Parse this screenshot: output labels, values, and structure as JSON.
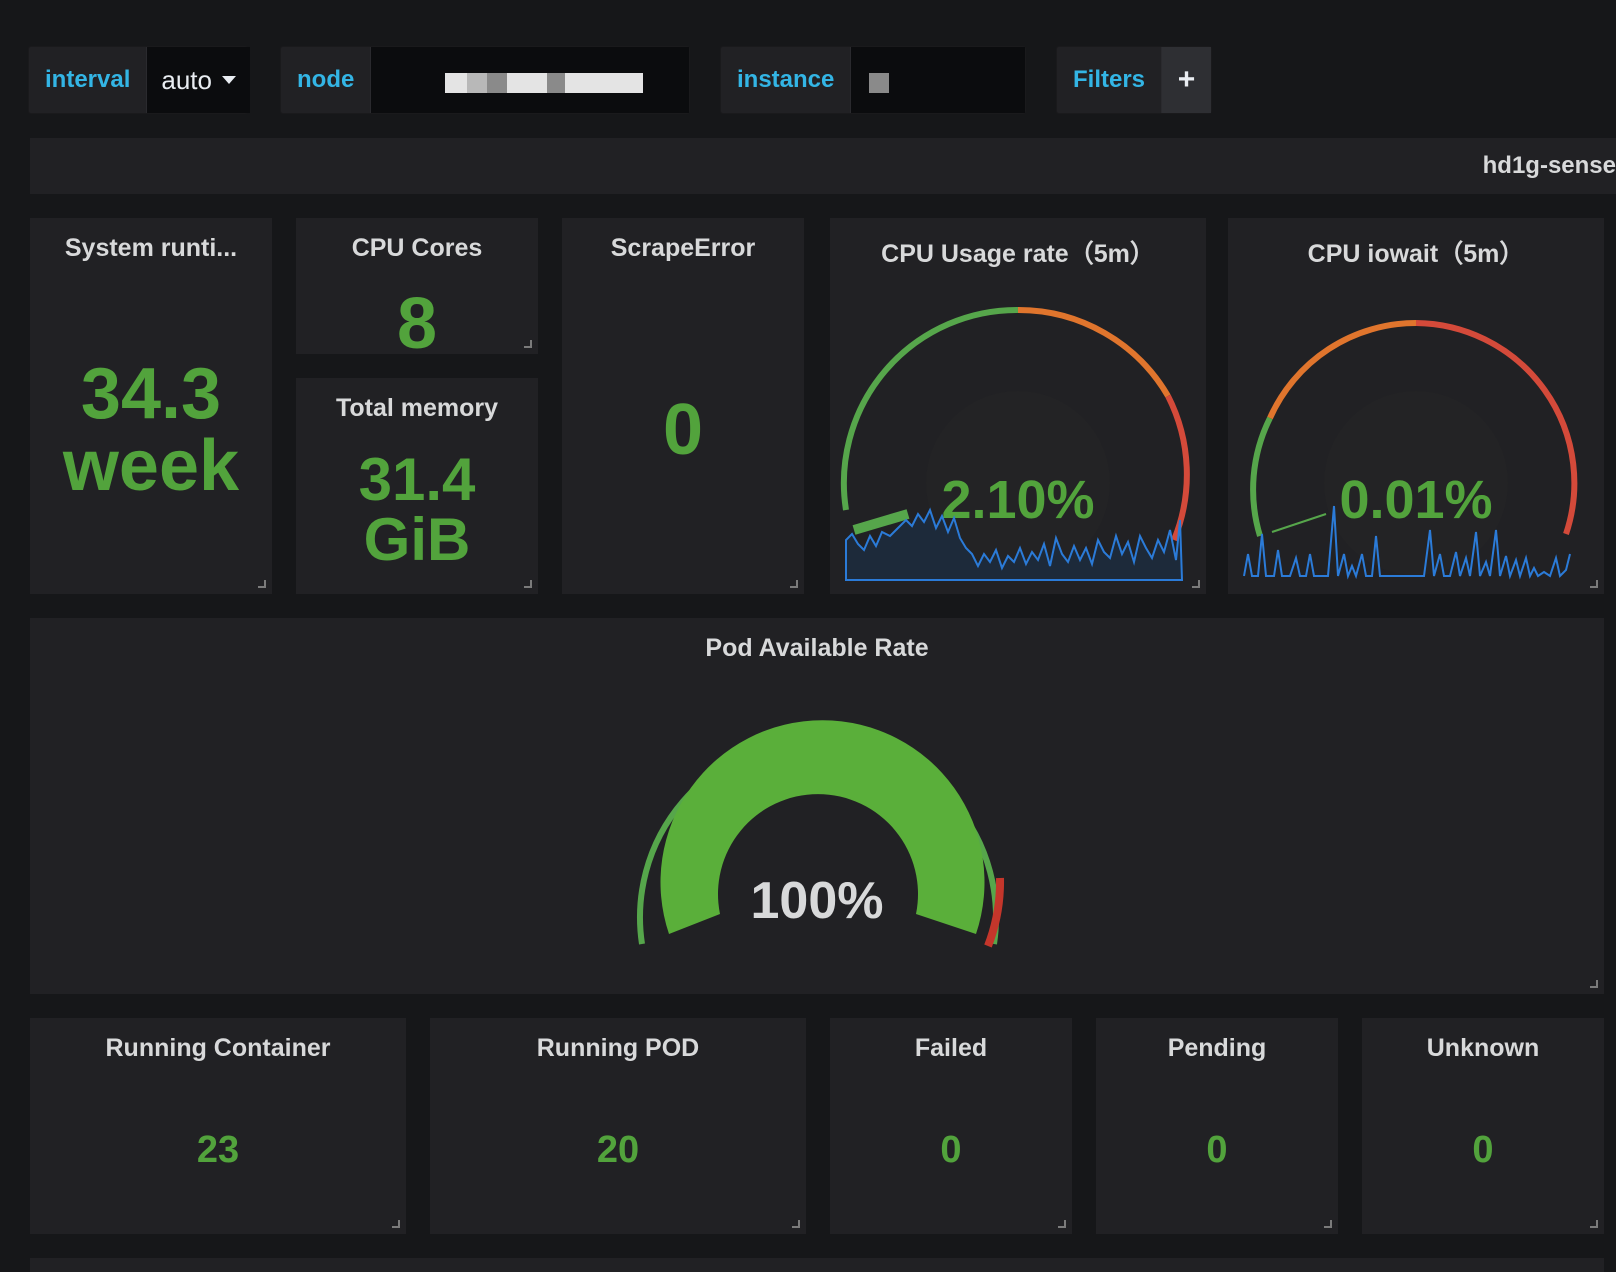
{
  "variables": [
    {
      "label": "interval",
      "value": "auto",
      "dropdown": true
    },
    {
      "label": "node",
      "value": "",
      "redacted": true
    },
    {
      "label": "instance",
      "value": "",
      "redacted": true
    }
  ],
  "filters": {
    "label": "Filters",
    "add_symbol": "+"
  },
  "row_header": {
    "title": "hd1g-sense"
  },
  "panels": {
    "system_runtime": {
      "title": "System runti...",
      "value": "34.3",
      "unit": "week"
    },
    "cpu_cores": {
      "title": "CPU Cores",
      "value": "8"
    },
    "total_memory": {
      "title": "Total memory",
      "value": "31.4",
      "unit": "GiB"
    },
    "scrape_error": {
      "title": "ScrapeError",
      "value": "0"
    },
    "cpu_usage": {
      "title": "CPU Usage rate（5m）",
      "value": "2.10%",
      "percent": 2.1
    },
    "cpu_iowait": {
      "title": "CPU iowait（5m）",
      "value": "0.01%",
      "percent": 0.01
    },
    "pod_available": {
      "title": "Pod Available Rate",
      "value": "100%",
      "percent": 100
    },
    "running_container": {
      "title": "Running Container",
      "value": "23"
    },
    "running_pod": {
      "title": "Running POD",
      "value": "20"
    },
    "failed": {
      "title": "Failed",
      "value": "0"
    },
    "pending": {
      "title": "Pending",
      "value": "0"
    },
    "unknown": {
      "title": "Unknown",
      "value": "0"
    }
  },
  "colors": {
    "background": "#161719",
    "panel": "#212124",
    "value_green": "#52a33c",
    "gauge_green": "#56a64b",
    "gauge_orange": "#e0752d",
    "gauge_red": "#d44a3a",
    "label_blue": "#33b5e5",
    "sparkline_blue": "#1f78c1"
  }
}
